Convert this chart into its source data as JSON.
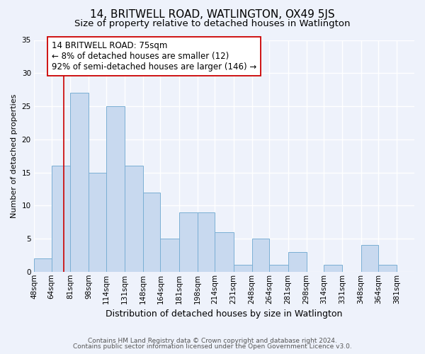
{
  "title": "14, BRITWELL ROAD, WATLINGTON, OX49 5JS",
  "subtitle": "Size of property relative to detached houses in Watlington",
  "xlabel": "Distribution of detached houses by size in Watlington",
  "ylabel": "Number of detached properties",
  "bar_color": "#c8d9ef",
  "bar_edge_color": "#7aafd4",
  "background_color": "#eef2fb",
  "grid_color": "#ffffff",
  "bins": [
    "48sqm",
    "64sqm",
    "81sqm",
    "98sqm",
    "114sqm",
    "131sqm",
    "148sqm",
    "164sqm",
    "181sqm",
    "198sqm",
    "214sqm",
    "231sqm",
    "248sqm",
    "264sqm",
    "281sqm",
    "298sqm",
    "314sqm",
    "331sqm",
    "348sqm",
    "364sqm",
    "381sqm"
  ],
  "values": [
    2,
    16,
    27,
    15,
    25,
    16,
    12,
    5,
    9,
    9,
    6,
    1,
    5,
    1,
    3,
    0,
    1,
    0,
    4,
    1,
    0
  ],
  "bin_edges": [
    48,
    64,
    81,
    98,
    114,
    131,
    148,
    164,
    181,
    198,
    214,
    231,
    248,
    264,
    281,
    298,
    314,
    331,
    348,
    364,
    381,
    397
  ],
  "property_line_x": 75,
  "property_line_color": "#cc0000",
  "ylim": [
    0,
    35
  ],
  "yticks": [
    0,
    5,
    10,
    15,
    20,
    25,
    30,
    35
  ],
  "annotation_title": "14 BRITWELL ROAD: 75sqm",
  "annotation_line1": "← 8% of detached houses are smaller (12)",
  "annotation_line2": "92% of semi-detached houses are larger (146) →",
  "annotation_box_color": "#ffffff",
  "annotation_box_edge": "#cc0000",
  "footer_line1": "Contains HM Land Registry data © Crown copyright and database right 2024.",
  "footer_line2": "Contains public sector information licensed under the Open Government Licence v3.0.",
  "title_fontsize": 11,
  "subtitle_fontsize": 9.5,
  "xlabel_fontsize": 9,
  "ylabel_fontsize": 8,
  "tick_fontsize": 7.5,
  "annotation_fontsize": 8.5,
  "footer_fontsize": 6.5
}
